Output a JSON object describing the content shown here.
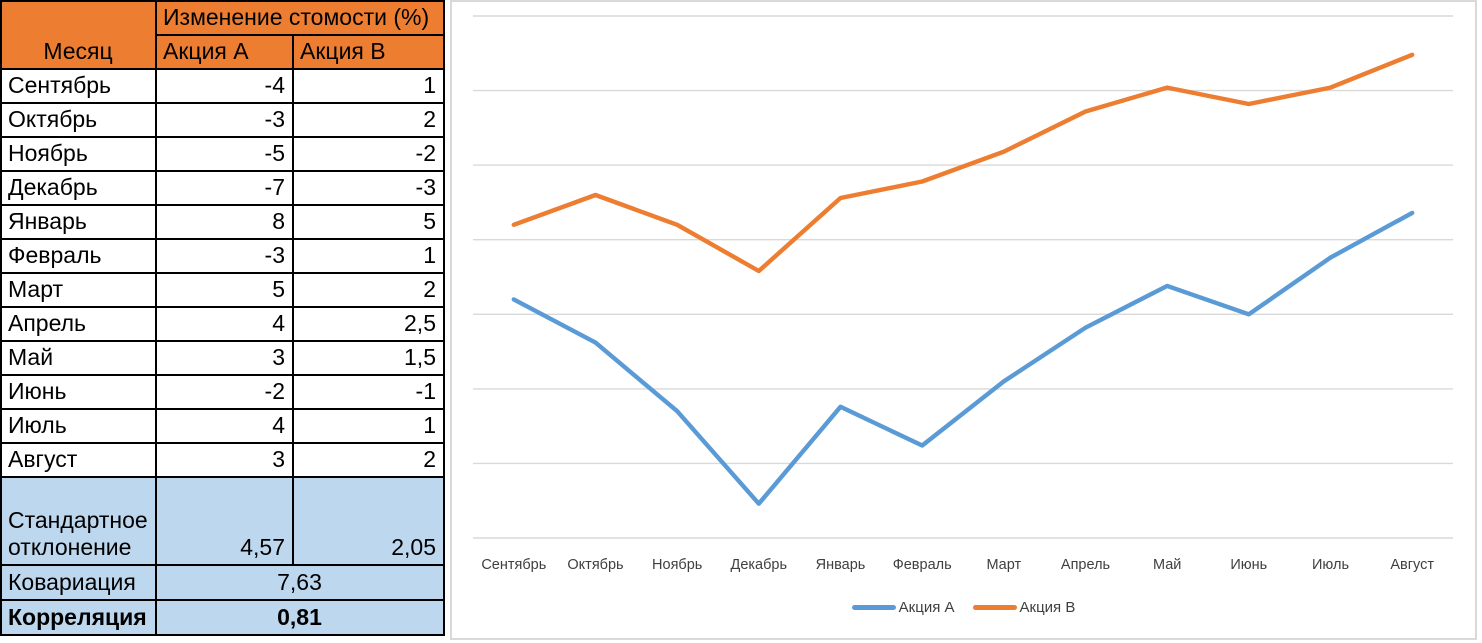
{
  "table": {
    "title": "Изменение стомости (%)",
    "columns": {
      "month": "Месяц",
      "stock_a": "Акция A",
      "stock_b": "Акция B"
    },
    "rows": [
      {
        "month": "Сентябрь",
        "a": "-4",
        "b": "1"
      },
      {
        "month": "Октябрь",
        "a": "-3",
        "b": "2"
      },
      {
        "month": "Ноябрь",
        "a": "-5",
        "b": "-2"
      },
      {
        "month": "Декабрь",
        "a": "-7",
        "b": "-3"
      },
      {
        "month": "Январь",
        "a": "8",
        "b": "5"
      },
      {
        "month": "Февраль",
        "a": "-3",
        "b": "1"
      },
      {
        "month": "Март",
        "a": "5",
        "b": "2"
      },
      {
        "month": "Апрель",
        "a": "4",
        "b": "2,5"
      },
      {
        "month": "Май",
        "a": "3",
        "b": "1,5"
      },
      {
        "month": "Июнь",
        "a": "-2",
        "b": "-1"
      },
      {
        "month": "Июль",
        "a": "4",
        "b": "1"
      },
      {
        "month": "Август",
        "a": "3",
        "b": "2"
      }
    ],
    "stats": {
      "std_label": "Стандартное отклонение",
      "std_a": "4,57",
      "std_b": "2,05",
      "cov_label": "Ковариация",
      "cov": "7,63",
      "corr_label": "Корреляция",
      "corr": "0,81"
    },
    "colors": {
      "header_bg": "#ED7D31",
      "stats_bg": "#BDD7EE",
      "border": "#000000"
    }
  },
  "chart_data": {
    "type": "line",
    "title": "",
    "categories": [
      "Сентябрь",
      "Октябрь",
      "Ноябрь",
      "Декабрь",
      "Январь",
      "Февраль",
      "Март",
      "Апрель",
      "Май",
      "Июнь",
      "Июль",
      "Август"
    ],
    "series": [
      {
        "name": "Акция A",
        "color": "#5B9BD5",
        "values": [
          -4,
          -6.9,
          -11.5,
          -17.7,
          -11.2,
          -13.8,
          -9.5,
          -5.9,
          -3.1,
          -5,
          -1.2,
          1.8
        ]
      },
      {
        "name": "Акция B",
        "color": "#ED7D31",
        "values": [
          1,
          3,
          1,
          -2.1,
          2.8,
          3.9,
          5.9,
          8.6,
          10.2,
          9.1,
          10.2,
          12.4
        ]
      }
    ],
    "ylim": [
      -20,
      15
    ],
    "grid_step": 5,
    "grid": true,
    "y_axis_labels_visible": false,
    "legend_position": "bottom",
    "gridline_color": "#D9D9D9",
    "axis_label_color": "#3f3f3f"
  }
}
